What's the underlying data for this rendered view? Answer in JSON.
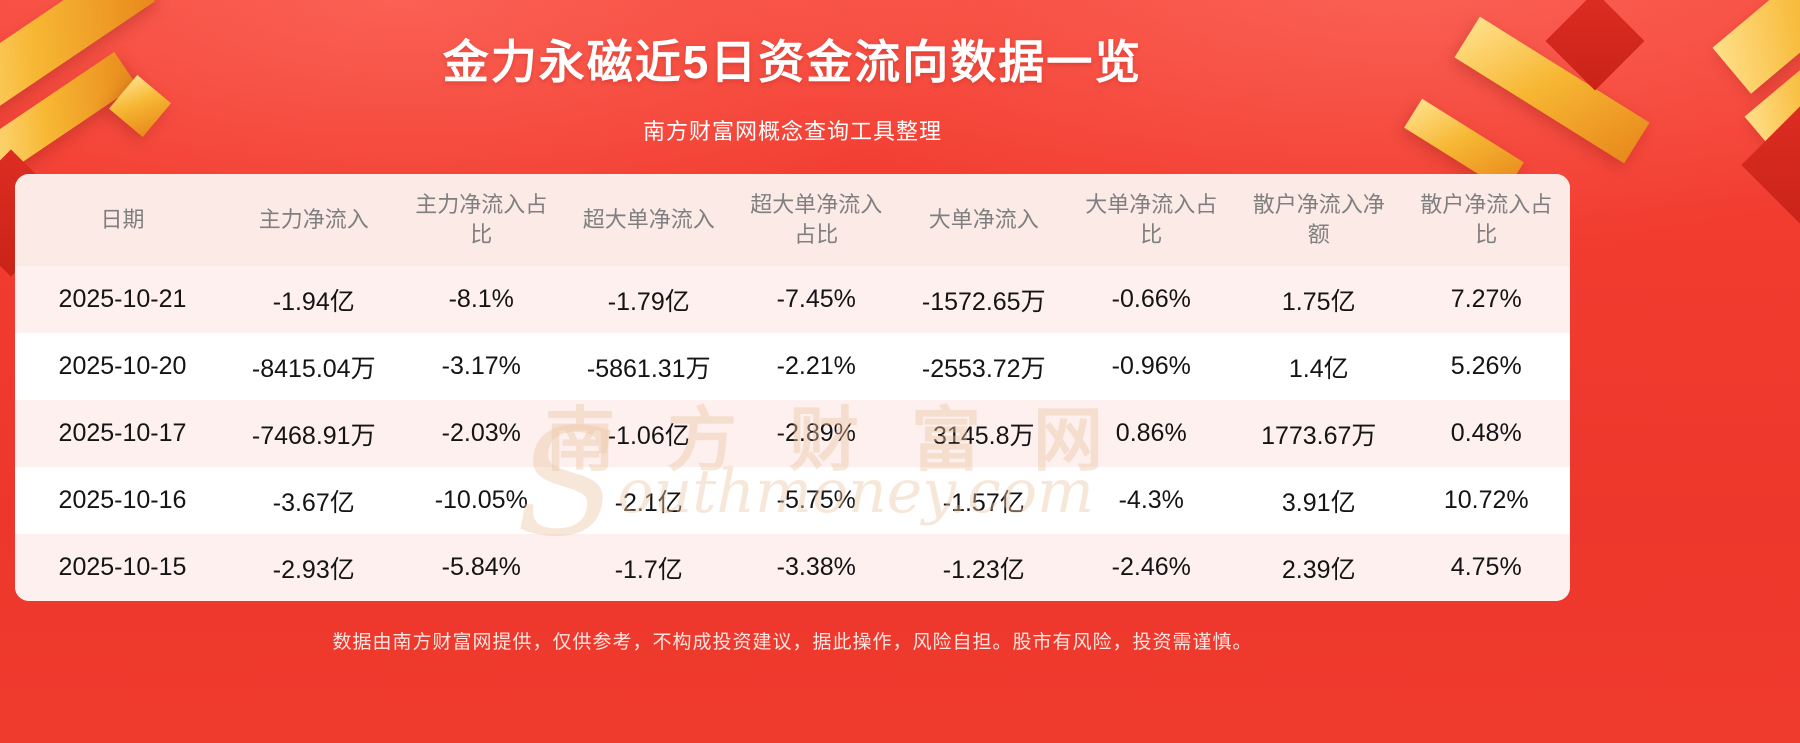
{
  "header": {
    "title": "金力永磁近5日资金流向数据一览",
    "subtitle": "南方财富网概念查询工具整理"
  },
  "chart_data": {
    "type": "table",
    "title": "金力永磁近5日资金流向数据一览",
    "columns": [
      "日期",
      "主力净流入",
      "主力净流入占比",
      "超大单净流入",
      "超大单净流入占比",
      "大单净流入",
      "大单净流入占比",
      "散户净流入净额",
      "散户净流入占比"
    ],
    "rows": [
      [
        "2025-10-21",
        "-1.94亿",
        "-8.1%",
        "-1.79亿",
        "-7.45%",
        "-1572.65万",
        "-0.66%",
        "1.75亿",
        "7.27%"
      ],
      [
        "2025-10-20",
        "-8415.04万",
        "-3.17%",
        "-5861.31万",
        "-2.21%",
        "-2553.72万",
        "-0.96%",
        "1.4亿",
        "5.26%"
      ],
      [
        "2025-10-17",
        "-7468.91万",
        "-2.03%",
        "-1.06亿",
        "-2.89%",
        "3145.8万",
        "0.86%",
        "1773.67万",
        "0.48%"
      ],
      [
        "2025-10-16",
        "-3.67亿",
        "-10.05%",
        "-2.1亿",
        "-5.75%",
        "-1.57亿",
        "-4.3%",
        "3.91亿",
        "10.72%"
      ],
      [
        "2025-10-15",
        "-2.93亿",
        "-5.84%",
        "-1.7亿",
        "-3.38%",
        "-1.23亿",
        "-2.46%",
        "2.39亿",
        "4.75%"
      ]
    ]
  },
  "watermark": {
    "line1": "南方财富网",
    "initial": "S",
    "domain": "outhmoney.com"
  },
  "footer": {
    "disclaimer": "数据由南方财富网提供，仅供参考，不构成投资建议，据此操作，风险自担。股市有风险，投资需谨慎。"
  },
  "colors": {
    "background_red": "#f23c30",
    "header_row_bg": "#fceae7",
    "row_pink": "#fdf0ee",
    "row_white": "#ffffff",
    "header_text": "#7f7f7f",
    "cell_text": "#141414",
    "title_text": "#ffffff",
    "gold_accent": "#f7b733"
  }
}
